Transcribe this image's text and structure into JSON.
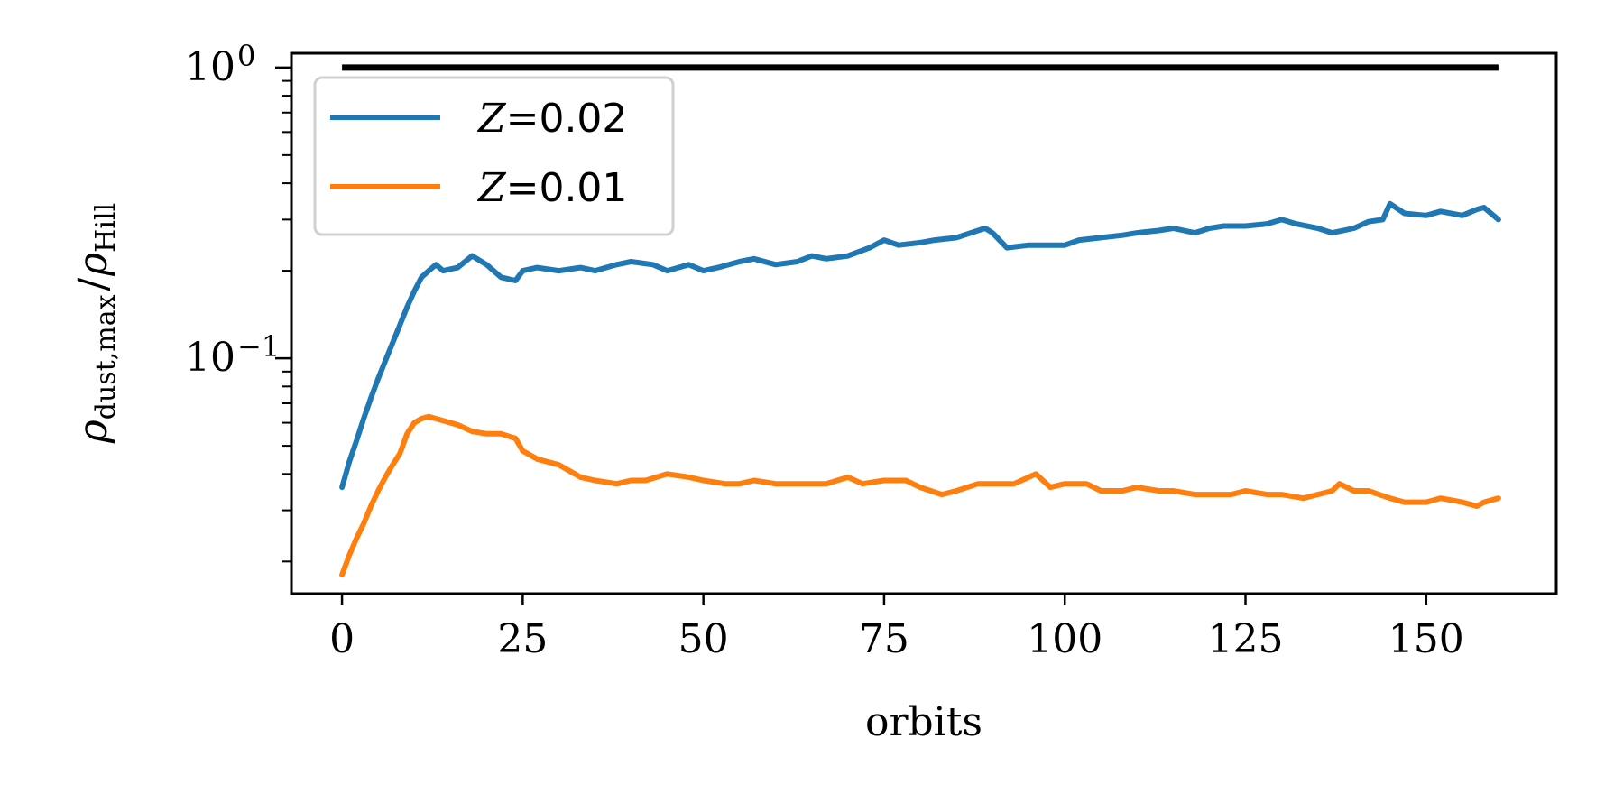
{
  "chart_data": {
    "type": "line",
    "title": "",
    "xlabel": "orbits",
    "ylabel": "ρdust,max / ρHill",
    "ylabel_parts": {
      "main": "ρ",
      "sub1": "dust,max",
      "slash": "/",
      "main2": "ρ",
      "sub2": "Hill"
    },
    "xlim": [
      -7,
      168
    ],
    "ylim": [
      0.0155,
      1.12
    ],
    "yscale": "log",
    "grid": false,
    "legend_position": "upper-left",
    "x_ticks": [
      0,
      25,
      50,
      75,
      100,
      125,
      150
    ],
    "x_tick_labels": [
      "0",
      "25",
      "50",
      "75",
      "100",
      "125",
      "150"
    ],
    "y_major_ticks": [
      {
        "value": 1,
        "base": "10",
        "exp": "0"
      },
      {
        "value": 0.1,
        "base": "10",
        "exp": "−1"
      }
    ],
    "y_minor_ticks": [
      0.02,
      0.03,
      0.04,
      0.05,
      0.06,
      0.07,
      0.08,
      0.09,
      0.2,
      0.3,
      0.4,
      0.5,
      0.6,
      0.7,
      0.8,
      0.9
    ],
    "reference_line": {
      "y": 1.0,
      "x": [
        0,
        160
      ],
      "color": "#000000"
    },
    "series": [
      {
        "name": "Z=0.02",
        "legend_label": {
          "var": "Z",
          "eq": "=",
          "val": "0.02"
        },
        "color": "#1f77b4",
        "x": [
          0,
          1,
          2,
          3,
          4,
          5,
          6,
          7,
          8,
          9,
          10,
          11,
          12,
          13,
          14,
          16,
          18,
          20,
          22,
          24,
          25,
          27,
          30,
          33,
          35,
          38,
          40,
          43,
          45,
          48,
          50,
          52,
          55,
          57,
          60,
          63,
          65,
          67,
          70,
          73,
          75,
          77,
          80,
          82,
          85,
          88,
          89,
          90,
          92,
          95,
          98,
          100,
          102,
          105,
          108,
          110,
          113,
          115,
          118,
          120,
          122,
          125,
          128,
          130,
          132,
          135,
          137,
          140,
          142,
          144,
          145,
          147,
          150,
          152,
          155,
          157,
          158,
          160
        ],
        "y": [
          0.036,
          0.044,
          0.052,
          0.062,
          0.073,
          0.085,
          0.098,
          0.113,
          0.13,
          0.15,
          0.17,
          0.19,
          0.2,
          0.21,
          0.2,
          0.205,
          0.225,
          0.21,
          0.19,
          0.185,
          0.2,
          0.205,
          0.2,
          0.205,
          0.2,
          0.21,
          0.215,
          0.21,
          0.2,
          0.21,
          0.2,
          0.205,
          0.215,
          0.22,
          0.21,
          0.215,
          0.225,
          0.22,
          0.225,
          0.24,
          0.255,
          0.245,
          0.25,
          0.255,
          0.26,
          0.275,
          0.28,
          0.27,
          0.24,
          0.245,
          0.245,
          0.245,
          0.255,
          0.26,
          0.265,
          0.27,
          0.275,
          0.28,
          0.27,
          0.28,
          0.285,
          0.285,
          0.29,
          0.3,
          0.29,
          0.28,
          0.27,
          0.28,
          0.295,
          0.3,
          0.34,
          0.315,
          0.31,
          0.32,
          0.31,
          0.325,
          0.33,
          0.3
        ]
      },
      {
        "name": "Z=0.01",
        "legend_label": {
          "var": "Z",
          "eq": "=",
          "val": "0.01"
        },
        "color": "#ff7f0e",
        "x": [
          0,
          1,
          2,
          3,
          4,
          5,
          6,
          7,
          8,
          9,
          10,
          11,
          12,
          13,
          14,
          16,
          18,
          20,
          22,
          24,
          25,
          27,
          30,
          33,
          35,
          38,
          40,
          42,
          45,
          48,
          50,
          53,
          55,
          57,
          60,
          63,
          65,
          67,
          70,
          72,
          75,
          78,
          80,
          83,
          85,
          88,
          90,
          93,
          95,
          96,
          98,
          100,
          103,
          105,
          108,
          110,
          113,
          115,
          118,
          120,
          123,
          125,
          128,
          130,
          133,
          135,
          137,
          138,
          140,
          142,
          145,
          147,
          150,
          152,
          155,
          157,
          158,
          160
        ],
        "y": [
          0.018,
          0.021,
          0.024,
          0.027,
          0.031,
          0.035,
          0.039,
          0.043,
          0.047,
          0.055,
          0.06,
          0.062,
          0.063,
          0.062,
          0.061,
          0.059,
          0.056,
          0.055,
          0.055,
          0.053,
          0.048,
          0.045,
          0.043,
          0.039,
          0.038,
          0.037,
          0.038,
          0.038,
          0.04,
          0.039,
          0.038,
          0.037,
          0.037,
          0.038,
          0.037,
          0.037,
          0.037,
          0.037,
          0.039,
          0.037,
          0.038,
          0.038,
          0.036,
          0.034,
          0.035,
          0.037,
          0.037,
          0.037,
          0.039,
          0.04,
          0.036,
          0.037,
          0.037,
          0.035,
          0.035,
          0.036,
          0.035,
          0.035,
          0.034,
          0.034,
          0.034,
          0.035,
          0.034,
          0.034,
          0.033,
          0.034,
          0.035,
          0.037,
          0.035,
          0.035,
          0.033,
          0.032,
          0.032,
          0.033,
          0.032,
          0.031,
          0.032,
          0.033
        ]
      }
    ]
  }
}
